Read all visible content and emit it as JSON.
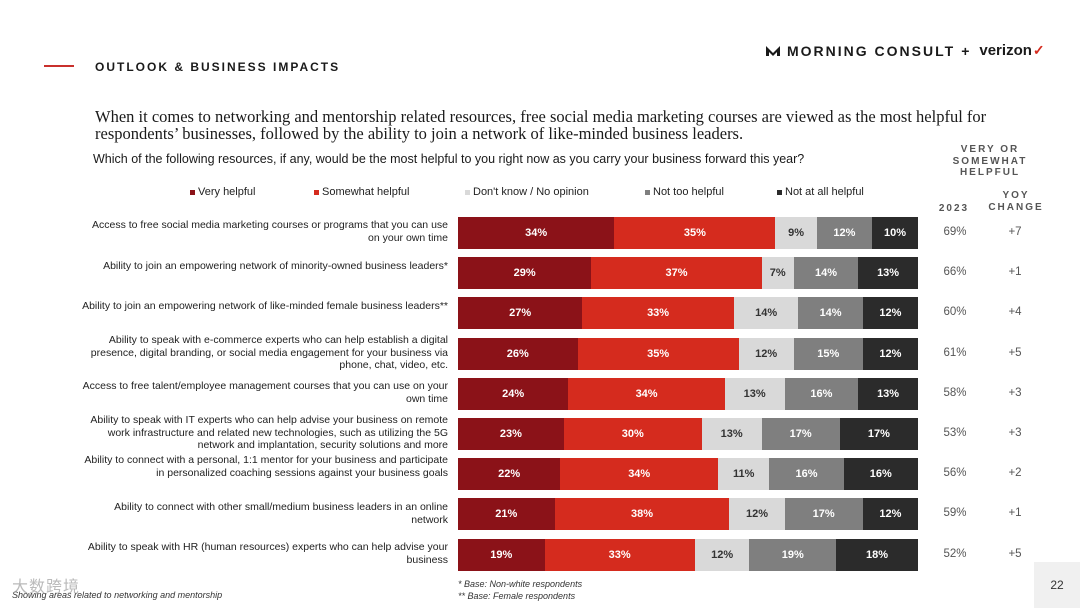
{
  "header": {
    "section_title": "OUTLOOK & BUSINESS IMPACTS",
    "logo_brand": "MORNING CONSULT",
    "logo_plus": "+",
    "logo_partner": "verizon",
    "logo_check": "✓"
  },
  "headline": "When it comes to networking and mentorship related resources, free social media marketing courses are viewed as the most helpful for respondents’ businesses, followed by the ability to join a network of like-minded business leaders.",
  "question": "Which of the following resources, if any, would be the most helpful to you right now as you carry your business forward this year?",
  "columns": {
    "helpful_header": "VERY OR SOMEWHAT HELPFUL",
    "year": "2023",
    "yoy_header": "YOY CHANGE"
  },
  "colors": {
    "very": "#8b1218",
    "somewhat": "#d52b1e",
    "dont_know": "#d9d9d9",
    "not_too": "#7f7f7f",
    "not_at_all": "#2b2b2b"
  },
  "chart_data": {
    "type": "bar",
    "orientation": "horizontal-stacked-100",
    "title": "Which of the following resources, if any, would be the most helpful to you right now as you carry your business forward this year?",
    "unit": "%",
    "legend_position": "top",
    "series": [
      {
        "name": "Very helpful",
        "color_key": "very",
        "values": [
          34,
          29,
          27,
          26,
          24,
          23,
          22,
          21,
          19
        ]
      },
      {
        "name": "Somewhat helpful",
        "color_key": "somewhat",
        "values": [
          35,
          37,
          33,
          35,
          34,
          30,
          34,
          38,
          33
        ]
      },
      {
        "name": "Don't know / No opinion",
        "color_key": "dont_know",
        "values": [
          9,
          7,
          14,
          12,
          13,
          13,
          11,
          12,
          12
        ]
      },
      {
        "name": "Not too helpful",
        "color_key": "not_too",
        "values": [
          12,
          14,
          14,
          15,
          16,
          17,
          16,
          17,
          19
        ]
      },
      {
        "name": "Not at all helpful",
        "color_key": "not_at_all",
        "values": [
          10,
          13,
          12,
          12,
          13,
          17,
          16,
          12,
          18
        ]
      }
    ],
    "categories": [
      "Access to free social media marketing courses or programs that you can use on your own time",
      "Ability to join an empowering network of minority-owned business leaders*",
      "Ability to join an empowering network of like-minded female business leaders**",
      "Ability to speak with e-commerce experts who can help establish a digital presence, digital branding, or social media engagement for your business via phone, chat, video, etc.",
      "Access to free talent/employee management courses that you can use on your own time",
      "Ability to speak with IT experts who can help advise your business on remote work infrastructure and related new technologies, such as utilizing the 5G network and implantation, security solutions and more",
      "Ability to connect with a personal, 1:1 mentor for your business and participate in personalized coaching sessions against your business goals",
      "Ability to connect with other small/medium business leaders in an online network",
      "Ability to speak with HR (human resources) experts who can help advise your business"
    ],
    "helpful_2023": [
      "69%",
      "66%",
      "60%",
      "61%",
      "58%",
      "53%",
      "56%",
      "59%",
      "52%"
    ],
    "yoy_change": [
      "+7",
      "+1",
      "+4",
      "+5",
      "+3",
      "+3",
      "+2",
      "+1",
      "+5"
    ]
  },
  "footnotes": {
    "left": "Showing areas related to networking and mentorship",
    "base_1": "* Base: Non-white respondents",
    "base_2": "** Base: Female respondents"
  },
  "page_number": "22",
  "watermark": "大数跨境"
}
